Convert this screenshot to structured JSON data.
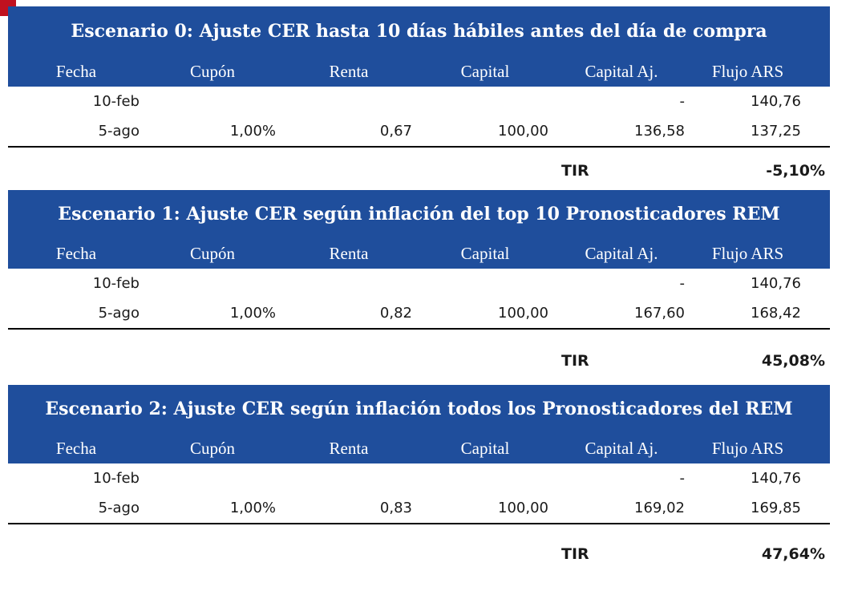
{
  "columns": [
    "Fecha",
    "Cupón",
    "Renta",
    "Capital",
    "Capital Aj.",
    "Flujo ARS"
  ],
  "tir_label": "TIR",
  "scenarios": [
    {
      "title": "Escenario 0: Ajuste CER hasta 10 días hábiles antes del día de compra",
      "rows": [
        {
          "fecha": "10-feb",
          "cupon": "",
          "renta": "",
          "capital": "",
          "capital_aj": "-",
          "flujo": "140,76"
        },
        {
          "fecha": "5-ago",
          "cupon": "1,00%",
          "renta": "0,67",
          "capital": "100,00",
          "capital_aj": "136,58",
          "flujo": "137,25"
        }
      ],
      "tir": "-5,10%"
    },
    {
      "title": "Escenario 1: Ajuste CER según inflación del top 10 Pronosticadores REM",
      "rows": [
        {
          "fecha": "10-feb",
          "cupon": "",
          "renta": "",
          "capital": "",
          "capital_aj": "-",
          "flujo": "140,76"
        },
        {
          "fecha": "5-ago",
          "cupon": "1,00%",
          "renta": "0,82",
          "capital": "100,00",
          "capital_aj": "167,60",
          "flujo": "168,42"
        }
      ],
      "tir": "45,08%"
    },
    {
      "title": "Escenario 2: Ajuste CER según inflación todos los Pronosticadores del REM",
      "rows": [
        {
          "fecha": "10-feb",
          "cupon": "",
          "renta": "",
          "capital": "",
          "capital_aj": "-",
          "flujo": "140,76"
        },
        {
          "fecha": "5-ago",
          "cupon": "1,00%",
          "renta": "0,83",
          "capital": "100,00",
          "capital_aj": "169,02",
          "flujo": "169,85"
        }
      ],
      "tir": "47,64%"
    }
  ],
  "colors": {
    "header_bg": "#1f4e9c",
    "header_text": "#ffffff",
    "accent_mark": "#c0111f"
  }
}
